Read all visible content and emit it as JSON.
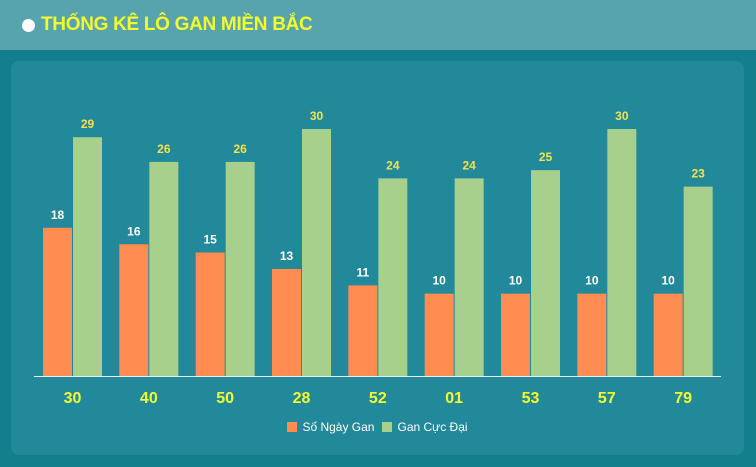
{
  "header": {
    "title": "THỐNG KÊ LÔ GAN MIỀN BẮC"
  },
  "colors": {
    "header_bg": "#57a4af",
    "title": "#f6fb2d",
    "panel_bg": "#22899a",
    "series_1": "#ff8c50",
    "series_2": "#a8d08d",
    "category_label": "#f6fb2d",
    "value_label_1": "#ffffff",
    "value_label_2": "#f6e24a"
  },
  "chart_data": {
    "type": "bar",
    "title": "THỐNG KÊ LÔ GAN MIỀN BẮC",
    "categories": [
      "30",
      "40",
      "50",
      "28",
      "52",
      "01",
      "53",
      "57",
      "79"
    ],
    "series": [
      {
        "name": "Số Ngày Gan",
        "values": [
          18,
          16,
          15,
          13,
          11,
          10,
          10,
          10,
          10
        ]
      },
      {
        "name": "Gan Cực Đại",
        "values": [
          29,
          26,
          26,
          30,
          24,
          24,
          25,
          30,
          23
        ]
      }
    ],
    "ylim": [
      0,
      30
    ],
    "grid": false,
    "legend": "bottom-center"
  }
}
